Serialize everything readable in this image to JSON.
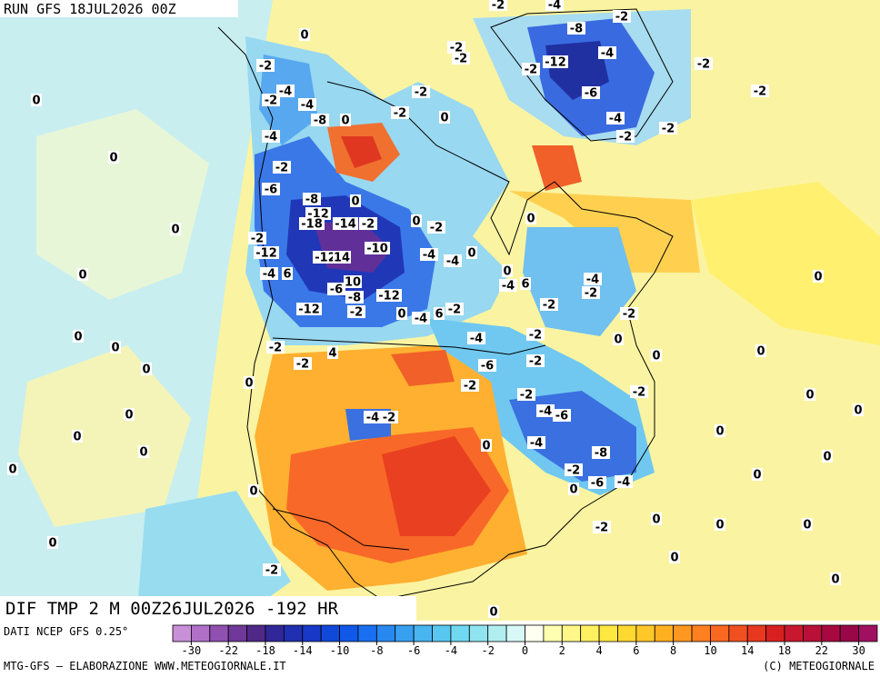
{
  "header": {
    "run": "RUN GFS 18JUL2026 00Z"
  },
  "map": {
    "title": "DIF TMP 2 M 00Z26JUL2026 -192 HR",
    "labels": [
      -2,
      -4,
      -2,
      -8,
      -4,
      -12,
      -2,
      -2,
      -6,
      -2,
      -4,
      -2,
      -2,
      -2,
      -2,
      -2,
      -2,
      0,
      0,
      -2,
      0,
      -2,
      -4,
      -4,
      -8,
      0,
      -4,
      0,
      -2,
      -6,
      -8,
      0,
      -12,
      -18,
      -14,
      -2,
      0,
      -2,
      -12,
      -12,
      14,
      -10,
      0,
      -2,
      -4,
      -4,
      0,
      0,
      -4,
      6,
      -12,
      10,
      -6,
      -8,
      -12,
      0,
      -4,
      6,
      -2,
      -2,
      0,
      -4,
      6,
      -2,
      0,
      -4,
      -2,
      -2,
      0,
      0,
      0,
      -2,
      4,
      -2,
      0,
      -4,
      -2,
      -6,
      -2,
      -2,
      -2,
      -4,
      -6,
      -2,
      0,
      0,
      0,
      0,
      0,
      0,
      -4,
      -2,
      0,
      0,
      0,
      -4,
      -8,
      -2,
      -6,
      -4,
      0,
      0,
      0,
      0,
      0,
      0,
      -2,
      0,
      0,
      0,
      -2,
      0,
      0,
      0,
      0,
      0
    ]
  },
  "footer": {
    "source": "DATI NCEP GFS 0.25°",
    "credit": "MTG-GFS — ELABORAZIONE WWW.METEOGIORNALE.IT",
    "copyright": "(C) METEOGIORNALE"
  },
  "colorbar": {
    "ticks": [
      -30,
      -22,
      -18,
      -14,
      -10,
      -8,
      -6,
      -4,
      -2,
      0,
      2,
      4,
      6,
      8,
      10,
      14,
      18,
      22,
      30
    ],
    "colors": [
      "#c890d8",
      "#b070c8",
      "#9050b0",
      "#703898",
      "#502888",
      "#302898",
      "#2030b0",
      "#1838c8",
      "#1048d8",
      "#1058e8",
      "#1870f0",
      "#2888f0",
      "#38a0f0",
      "#48b4f0",
      "#58c8f0",
      "#70d8f0",
      "#90e4f0",
      "#b0eef0",
      "#d8f8f8",
      "#fffff0",
      "#ffffb0",
      "#fff888",
      "#fff060",
      "#ffe840",
      "#ffd830",
      "#ffc828",
      "#ffb020",
      "#ff9820",
      "#ff8020",
      "#f86820",
      "#f05020",
      "#e83820",
      "#d82020",
      "#c81830",
      "#b81038",
      "#a80840",
      "#980848",
      "#a01060"
    ]
  }
}
